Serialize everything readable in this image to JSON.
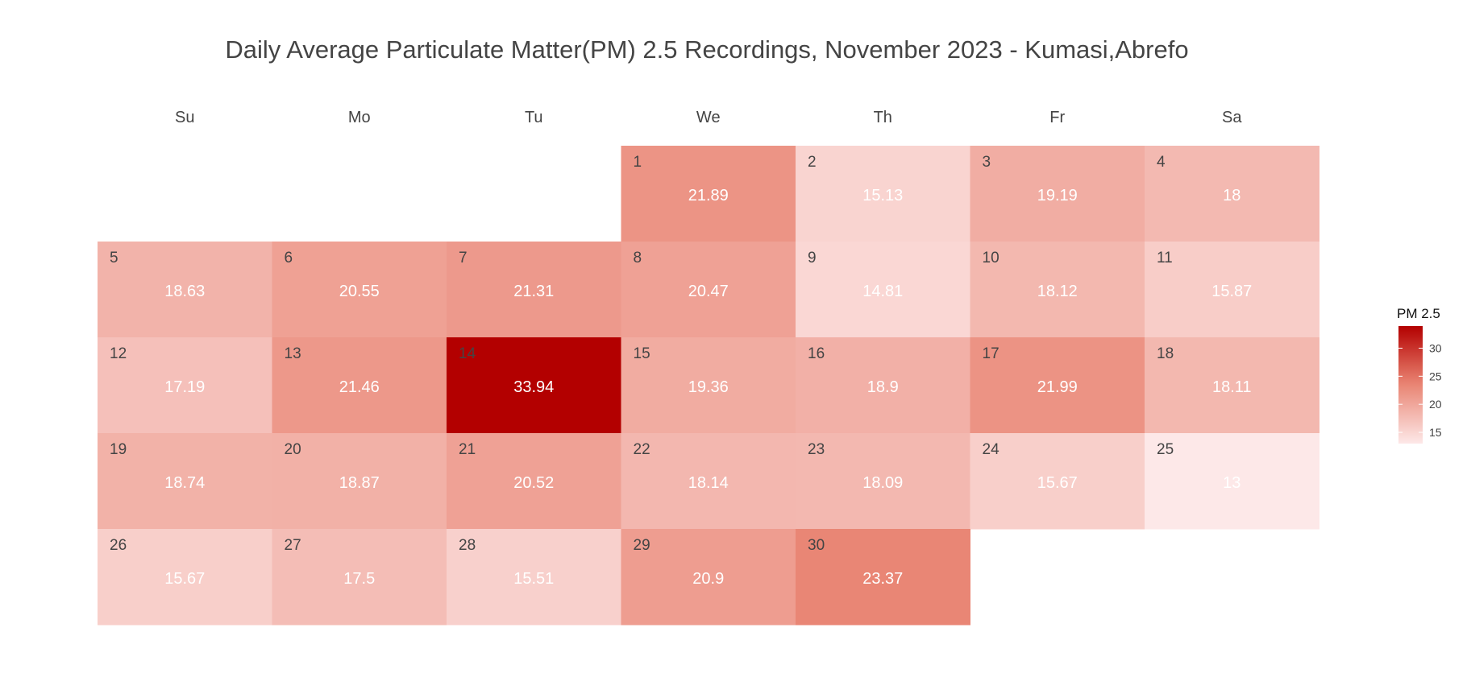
{
  "chart_data": {
    "type": "heatmap",
    "title": "Daily Average Particulate Matter(PM) 2.5 Recordings, November 2023 - Kumasi,Abrefo",
    "weekdays": [
      "Su",
      "Mo",
      "Tu",
      "We",
      "Th",
      "Fr",
      "Sa"
    ],
    "first_weekday_index": 3,
    "days": [
      {
        "day": 1,
        "value": 21.89
      },
      {
        "day": 2,
        "value": 15.13
      },
      {
        "day": 3,
        "value": 19.19
      },
      {
        "day": 4,
        "value": 18
      },
      {
        "day": 5,
        "value": 18.63
      },
      {
        "day": 6,
        "value": 20.55
      },
      {
        "day": 7,
        "value": 21.31
      },
      {
        "day": 8,
        "value": 20.47
      },
      {
        "day": 9,
        "value": 14.81
      },
      {
        "day": 10,
        "value": 18.12
      },
      {
        "day": 11,
        "value": 15.87
      },
      {
        "day": 12,
        "value": 17.19
      },
      {
        "day": 13,
        "value": 21.46
      },
      {
        "day": 14,
        "value": 33.94
      },
      {
        "day": 15,
        "value": 19.36
      },
      {
        "day": 16,
        "value": 18.9
      },
      {
        "day": 17,
        "value": 21.99
      },
      {
        "day": 18,
        "value": 18.11
      },
      {
        "day": 19,
        "value": 18.74
      },
      {
        "day": 20,
        "value": 18.87
      },
      {
        "day": 21,
        "value": 20.52
      },
      {
        "day": 22,
        "value": 18.14
      },
      {
        "day": 23,
        "value": 18.09
      },
      {
        "day": 24,
        "value": 15.67
      },
      {
        "day": 25,
        "value": 13
      },
      {
        "day": 26,
        "value": 15.67
      },
      {
        "day": 27,
        "value": 17.5
      },
      {
        "day": 28,
        "value": 15.51
      },
      {
        "day": 29,
        "value": 20.9
      },
      {
        "day": 30,
        "value": 23.37
      }
    ],
    "legend": {
      "title": "PM 2.5",
      "ticks": [
        15,
        20,
        25,
        30
      ],
      "range": [
        13,
        33.94
      ],
      "placement": "right"
    },
    "colors": {
      "low": "#fde8e8",
      "mid": "#e8806e",
      "high": "#b30000"
    },
    "grid": false
  }
}
